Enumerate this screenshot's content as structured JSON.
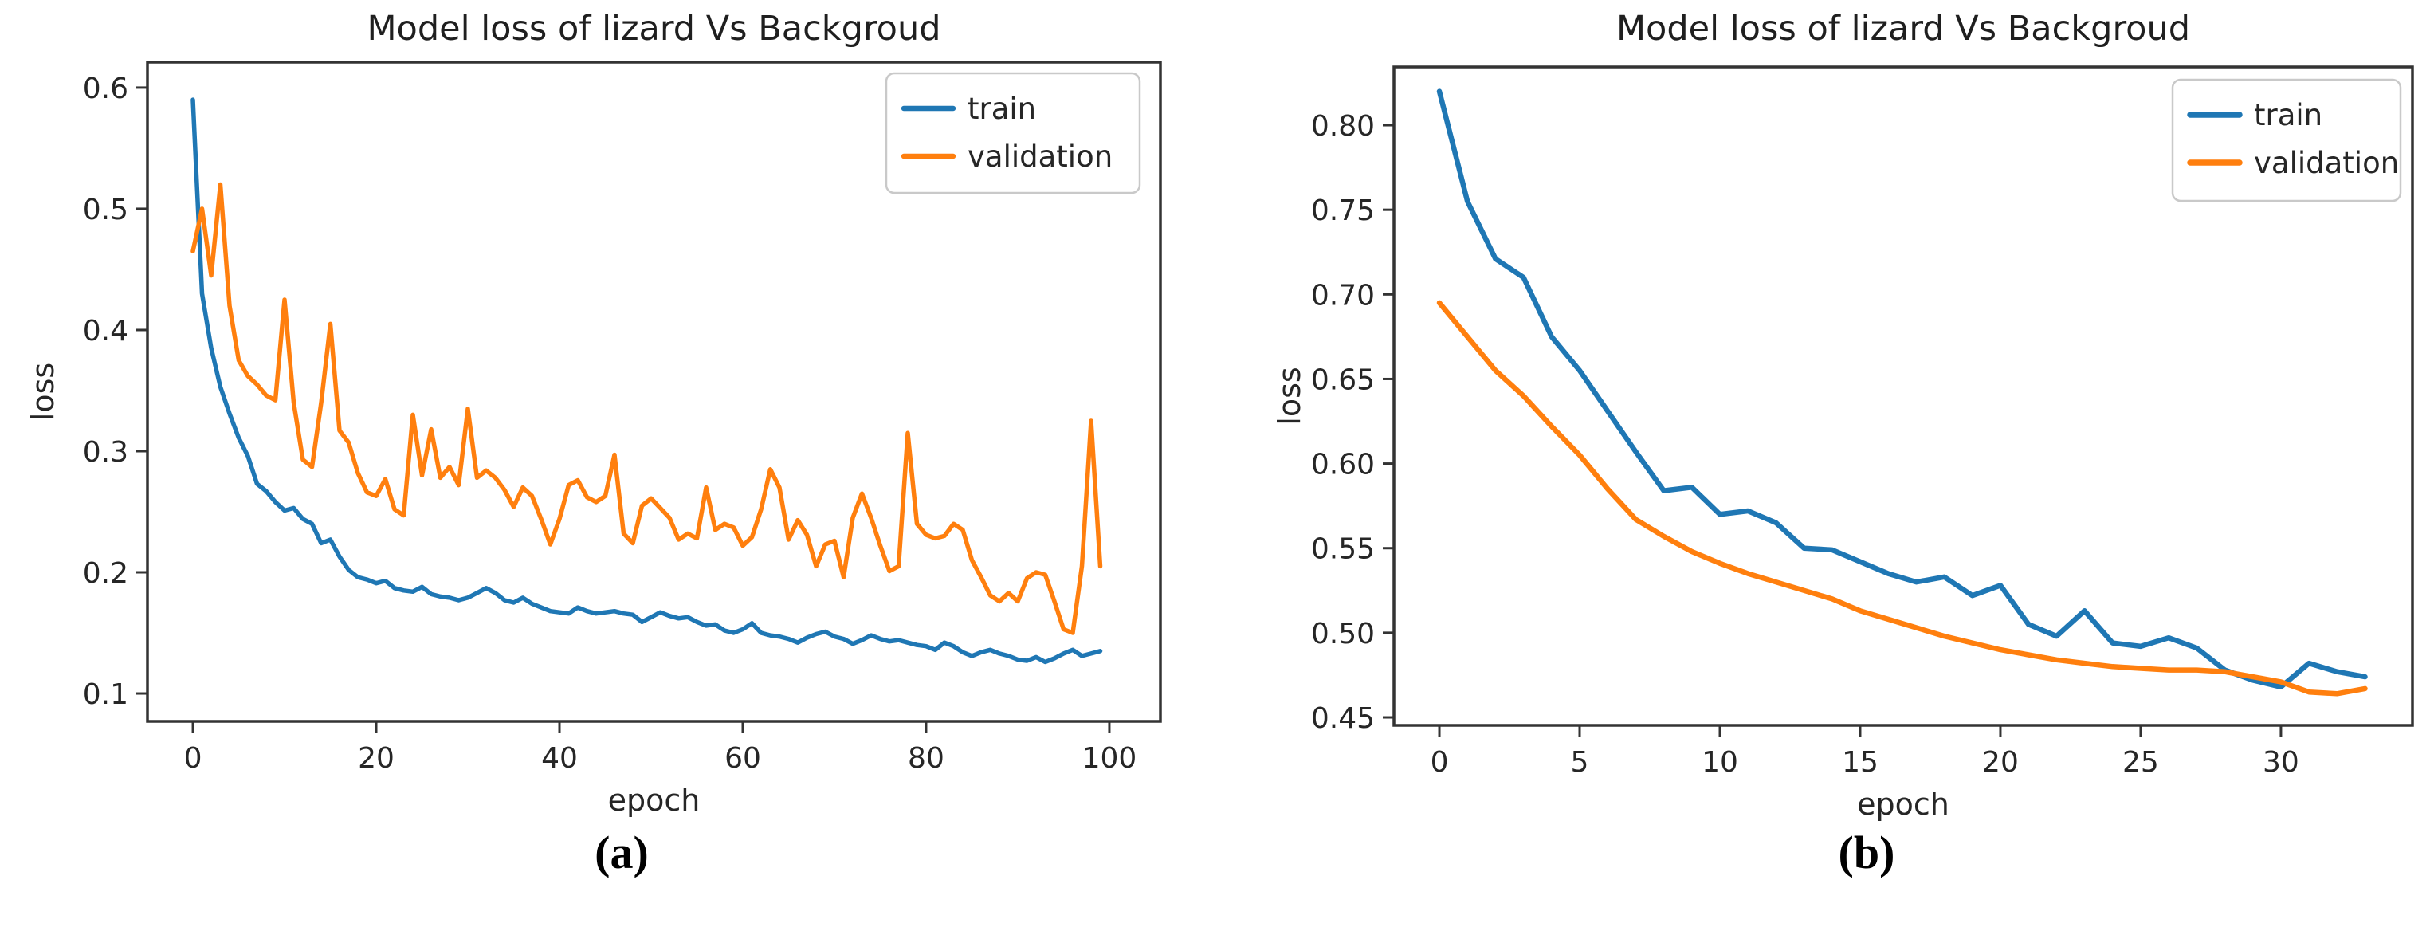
{
  "figure": {
    "background_color": "#ffffff",
    "text_color": "#262626",
    "captions": [
      "(a)",
      "(b)"
    ]
  },
  "chart_data": [
    {
      "type": "line",
      "panel": "a",
      "title": "Model loss of lizard Vs Backgroud",
      "xlabel": "epoch",
      "ylabel": "loss",
      "grid": false,
      "legend_position": "upper right",
      "legend": [
        "train",
        "validation"
      ],
      "xlim": [
        -4.96,
        105.57
      ],
      "ylim": [
        0.077,
        0.621
      ],
      "xticks": {
        "values": [
          0,
          20,
          40,
          60,
          80,
          100
        ],
        "labels": [
          "0",
          "20",
          "40",
          "60",
          "80",
          "100"
        ]
      },
      "yticks": {
        "values": [
          0.1,
          0.2,
          0.3,
          0.4,
          0.5,
          0.6
        ],
        "labels": [
          "0.1",
          "0.2",
          "0.3",
          "0.4",
          "0.5",
          "0.6"
        ]
      },
      "series": [
        {
          "name": "train",
          "color": "#1f77b4",
          "values": [
            0.59,
            0.43,
            0.385,
            0.353,
            0.331,
            0.311,
            0.296,
            0.273,
            0.267,
            0.258,
            0.251,
            0.253,
            0.244,
            0.24,
            0.224,
            0.227,
            0.213,
            0.202,
            0.196,
            0.194,
            0.191,
            0.193,
            0.187,
            0.185,
            0.184,
            0.188,
            0.182,
            0.18,
            0.179,
            0.177,
            0.179,
            0.183,
            0.187,
            0.183,
            0.177,
            0.175,
            0.179,
            0.174,
            0.171,
            0.168,
            0.167,
            0.166,
            0.171,
            0.168,
            0.166,
            0.167,
            0.168,
            0.166,
            0.165,
            0.159,
            0.163,
            0.167,
            0.164,
            0.162,
            0.163,
            0.159,
            0.156,
            0.157,
            0.152,
            0.15,
            0.153,
            0.158,
            0.15,
            0.148,
            0.147,
            0.145,
            0.142,
            0.146,
            0.149,
            0.151,
            0.147,
            0.145,
            0.141,
            0.144,
            0.148,
            0.145,
            0.143,
            0.144,
            0.142,
            0.14,
            0.139,
            0.136,
            0.142,
            0.139,
            0.134,
            0.131,
            0.134,
            0.136,
            0.133,
            0.131,
            0.128,
            0.127,
            0.13,
            0.126,
            0.129,
            0.133,
            0.136,
            0.131,
            0.133,
            0.135
          ]
        },
        {
          "name": "validation",
          "color": "#ff7f0e",
          "values": [
            0.465,
            0.5,
            0.445,
            0.52,
            0.42,
            0.375,
            0.362,
            0.355,
            0.346,
            0.342,
            0.425,
            0.34,
            0.293,
            0.287,
            0.34,
            0.405,
            0.317,
            0.307,
            0.282,
            0.266,
            0.263,
            0.277,
            0.252,
            0.247,
            0.33,
            0.28,
            0.318,
            0.278,
            0.287,
            0.272,
            0.335,
            0.278,
            0.284,
            0.278,
            0.268,
            0.254,
            0.27,
            0.263,
            0.244,
            0.223,
            0.244,
            0.272,
            0.276,
            0.262,
            0.258,
            0.263,
            0.297,
            0.232,
            0.224,
            0.255,
            0.261,
            0.253,
            0.245,
            0.227,
            0.232,
            0.228,
            0.27,
            0.235,
            0.24,
            0.237,
            0.222,
            0.229,
            0.252,
            0.285,
            0.27,
            0.227,
            0.243,
            0.231,
            0.205,
            0.223,
            0.226,
            0.196,
            0.245,
            0.265,
            0.245,
            0.222,
            0.201,
            0.205,
            0.315,
            0.24,
            0.231,
            0.228,
            0.23,
            0.24,
            0.235,
            0.21,
            0.196,
            0.181,
            0.176,
            0.183,
            0.176,
            0.195,
            0.2,
            0.198,
            0.176,
            0.153,
            0.15,
            0.205,
            0.325,
            0.205
          ]
        }
      ]
    },
    {
      "type": "line",
      "panel": "b",
      "title": "Model loss of lizard Vs Backgroud",
      "xlabel": "epoch",
      "ylabel": "loss",
      "grid": false,
      "legend_position": "upper right",
      "legend": [
        "train",
        "validation"
      ],
      "xlim": [
        -1.62,
        34.69
      ],
      "ylim": [
        0.4453,
        0.8344
      ],
      "xticks": {
        "values": [
          0,
          5,
          10,
          15,
          20,
          25,
          30
        ],
        "labels": [
          "0",
          "5",
          "10",
          "15",
          "20",
          "25",
          "30"
        ]
      },
      "yticks": {
        "values": [
          0.45,
          0.5,
          0.55,
          0.6,
          0.65,
          0.7,
          0.75,
          0.8
        ],
        "labels": [
          "0.45",
          "0.50",
          "0.55",
          "0.60",
          "0.65",
          "0.70",
          "0.75",
          "0.80"
        ]
      },
      "series": [
        {
          "name": "train",
          "color": "#1f77b4",
          "values": [
            0.82,
            0.755,
            0.721,
            0.71,
            0.675,
            0.655,
            0.631,
            0.607,
            0.584,
            0.586,
            0.57,
            0.572,
            0.565,
            0.55,
            0.549,
            0.542,
            0.535,
            0.53,
            0.533,
            0.522,
            0.528,
            0.505,
            0.498,
            0.513,
            0.494,
            0.492,
            0.497,
            0.491,
            0.478,
            0.472,
            0.468,
            0.482,
            0.477,
            0.474
          ]
        },
        {
          "name": "validation",
          "color": "#ff7f0e",
          "values": [
            0.695,
            0.675,
            0.655,
            0.64,
            0.622,
            0.605,
            0.585,
            0.567,
            0.557,
            0.548,
            0.541,
            0.535,
            0.53,
            0.525,
            0.52,
            0.513,
            0.508,
            0.503,
            0.498,
            0.494,
            0.49,
            0.487,
            0.484,
            0.482,
            0.48,
            0.479,
            0.478,
            0.478,
            0.477,
            0.474,
            0.471,
            0.465,
            0.464,
            0.467
          ]
        }
      ]
    }
  ]
}
